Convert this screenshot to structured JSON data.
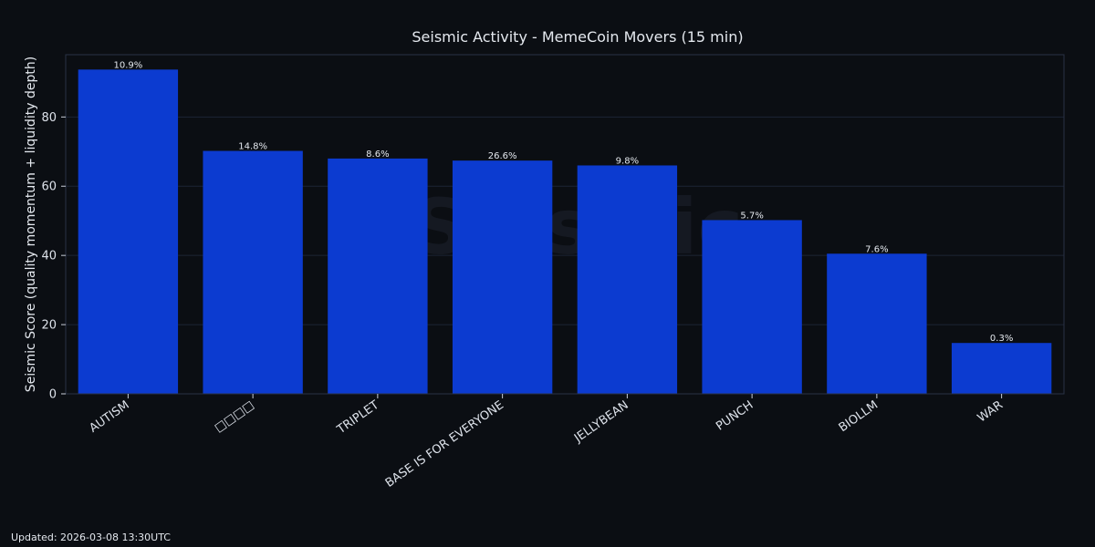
{
  "chart_data": {
    "type": "bar",
    "title": "Seismic Activity - MemeCoin Movers (15 min)",
    "xlabel": "",
    "ylabel": "Seismic Score (quality momentum + liquidity depth)",
    "categories": [
      "AUTISM",
      "□□□□",
      "TRIPLET",
      "BASE IS FOR EVERYONE",
      "JELLYBEAN",
      "PUNCH",
      "BIOLLM",
      "WAR"
    ],
    "values": [
      93.7,
      70.2,
      68.0,
      67.4,
      66.0,
      50.2,
      40.5,
      14.7
    ],
    "data_labels": [
      "10.9%",
      "14.8%",
      "8.6%",
      "26.6%",
      "9.8%",
      "5.7%",
      "7.6%",
      "0.3%"
    ],
    "ylim": [
      0,
      98
    ],
    "yticks": [
      0,
      20,
      40,
      60,
      80
    ],
    "grid": true,
    "bar_color": "#0c3bd0",
    "grid_color": "#1d2435",
    "background": "#0b0e13",
    "watermark": "Seismic"
  },
  "footer": {
    "updated": "Updated: 2026-03-08 13:30UTC"
  }
}
